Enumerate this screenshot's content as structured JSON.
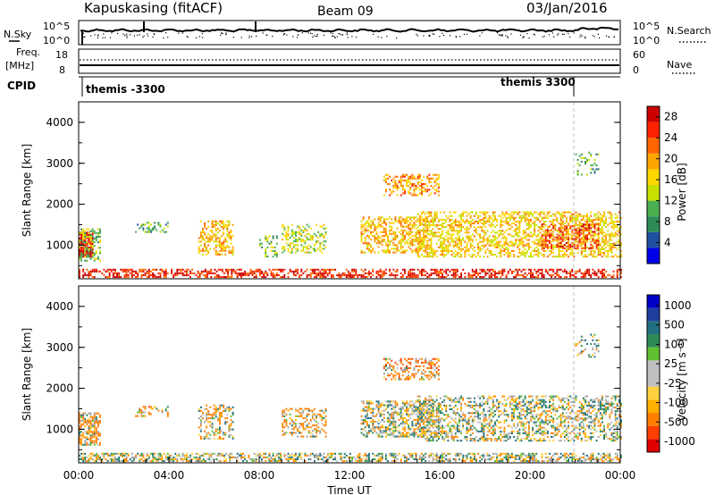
{
  "header": {
    "station": "Kapuskasing (fitACF)",
    "beam": "Beam 09",
    "date": "03/Jan/2016"
  },
  "strip_noise": {
    "left_label": "N.Sky",
    "right_label": "N.Search",
    "left_ticks": [
      "10^5",
      "10^0"
    ],
    "right_ticks": [
      "10^5",
      "10^0"
    ]
  },
  "strip_freq": {
    "left_label_1": "Freq.",
    "left_label_2": "[MHz]",
    "right_label": "Nave",
    "left_ticks": [
      "18",
      "8"
    ],
    "right_ticks": [
      "60",
      "0"
    ]
  },
  "cpid": {
    "label": "CPID",
    "markers": [
      {
        "text": "themis -3300",
        "hour": 0
      },
      {
        "text": "themis 3300",
        "hour": 22.1
      }
    ]
  },
  "colors": {
    "power_scale": [
      "#0000e8",
      "#1e4fa0",
      "#2e8b57",
      "#4caf50",
      "#c8e000",
      "#ffd700",
      "#ffa500",
      "#ff6600",
      "#ff2200",
      "#cc0000"
    ],
    "velocity_scale": [
      "#e00000",
      "#ff4000",
      "#ff8000",
      "#ffb000",
      "#ffd040",
      "#c0c0c0",
      "#c0c0c0",
      "#60c030",
      "#2e8b57",
      "#207080",
      "#1e3fa0",
      "#0000c8"
    ],
    "ground_scatter": "#a0a0a0"
  },
  "chart_data": [
    {
      "type": "heatmap",
      "name": "power",
      "ylabel": "Slant Range [km]",
      "yticks": [
        "1000",
        "2000",
        "3000",
        "4000"
      ],
      "ylim": [
        180,
        4500
      ],
      "xlim": [
        0,
        24
      ],
      "colorbar_label": "Power [dB]",
      "colorbar_ticks": [
        "4",
        "8",
        "12",
        "16",
        "20",
        "24",
        "28"
      ],
      "colorbar_range": [
        0,
        30
      ],
      "regions": [
        {
          "t0": 0.0,
          "t1": 24.0,
          "r0": 200,
          "r1": 400,
          "power": 26,
          "density": 0.55
        },
        {
          "t0": 0.0,
          "t1": 0.6,
          "r0": 700,
          "r1": 1300,
          "power": 27,
          "density": 0.9
        },
        {
          "t0": 0.0,
          "t1": 1.0,
          "r0": 600,
          "r1": 1400,
          "power": 12,
          "density": 0.45
        },
        {
          "t0": 2.5,
          "t1": 4.0,
          "r0": 1300,
          "r1": 1550,
          "power": 10,
          "density": 0.35
        },
        {
          "t0": 5.3,
          "t1": 6.8,
          "r0": 750,
          "r1": 1600,
          "power": 18,
          "density": 0.45
        },
        {
          "t0": 8.0,
          "t1": 8.8,
          "r0": 700,
          "r1": 1200,
          "power": 12,
          "density": 0.3
        },
        {
          "t0": 9.0,
          "t1": 11.0,
          "r0": 800,
          "r1": 1500,
          "power": 14,
          "density": 0.4
        },
        {
          "t0": 12.5,
          "t1": 15.5,
          "r0": 800,
          "r1": 1700,
          "power": 18,
          "density": 0.5
        },
        {
          "t0": 13.5,
          "t1": 16.0,
          "r0": 2200,
          "r1": 2700,
          "power": 20,
          "density": 0.45
        },
        {
          "t0": 15.0,
          "t1": 24.0,
          "r0": 700,
          "r1": 1800,
          "power": 17,
          "density": 0.5
        },
        {
          "t0": 20.5,
          "t1": 23.0,
          "r0": 900,
          "r1": 1500,
          "power": 24,
          "density": 0.45
        },
        {
          "t0": 22.0,
          "t1": 23.0,
          "r0": 2700,
          "r1": 3300,
          "power": 10,
          "density": 0.2
        }
      ]
    },
    {
      "type": "heatmap",
      "name": "velocity",
      "ylabel": "Slant Range [km]",
      "yticks": [
        "1000",
        "2000",
        "3000",
        "4000"
      ],
      "ylim": [
        180,
        4500
      ],
      "xlim": [
        0,
        24
      ],
      "xticks": [
        "00:00",
        "04:00",
        "08:00",
        "12:00",
        "16:00",
        "20:00",
        "00:00"
      ],
      "xlabel": "Time UT",
      "colorbar_label": "Velocity [m s⁻¹]",
      "colorbar_ticks": [
        "1000",
        "500",
        "100",
        "25",
        "-25",
        "-100",
        "-500",
        "-1000"
      ],
      "regions": [
        {
          "t0": 0.0,
          "t1": 24.0,
          "r0": 200,
          "r1": 400,
          "vel": 0,
          "density": 0.55
        },
        {
          "t0": 0.0,
          "t1": 1.0,
          "r0": 600,
          "r1": 1400,
          "vel": -150,
          "density": 0.6
        },
        {
          "t0": 2.5,
          "t1": 4.0,
          "r0": 1300,
          "r1": 1550,
          "vel": -200,
          "density": 0.3
        },
        {
          "t0": 5.3,
          "t1": 6.8,
          "r0": 750,
          "r1": 1600,
          "vel": -80,
          "density": 0.4
        },
        {
          "t0": 9.0,
          "t1": 11.0,
          "r0": 800,
          "r1": 1500,
          "vel": -150,
          "density": 0.35
        },
        {
          "t0": 12.5,
          "t1": 16.0,
          "r0": 800,
          "r1": 1700,
          "vel": 0,
          "density": 0.5
        },
        {
          "t0": 13.5,
          "t1": 16.0,
          "r0": 2200,
          "r1": 2700,
          "vel": -300,
          "density": 0.45
        },
        {
          "t0": 15.0,
          "t1": 24.0,
          "r0": 700,
          "r1": 1800,
          "vel": 0,
          "density": 0.45
        },
        {
          "t0": 22.0,
          "t1": 23.0,
          "r0": 2700,
          "r1": 3300,
          "vel": 20,
          "density": 0.2
        }
      ]
    }
  ]
}
